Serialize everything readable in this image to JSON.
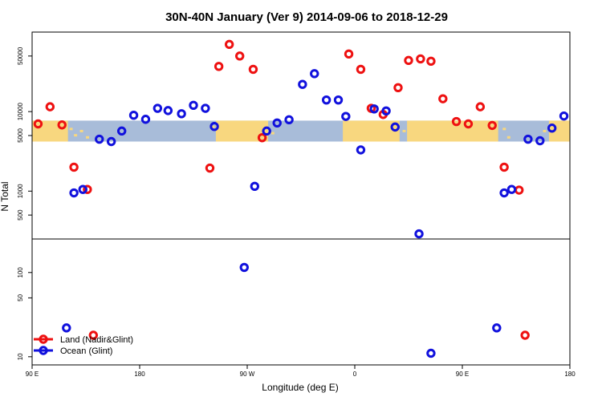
{
  "chart_data": {
    "type": "scatter",
    "title": "30N-40N January (Ver 9)   2014-09-06 to 2018-12-29",
    "xlabel": "Longitude (deg E)",
    "ylabel": "N Total",
    "xlim": [
      0,
      360
    ],
    "x_ticks": [
      {
        "value": 0,
        "label": "90 E"
      },
      {
        "value": 72,
        "label": "180"
      },
      {
        "value": 144,
        "label": "90 W"
      },
      {
        "value": 216,
        "label": "0"
      },
      {
        "value": 288,
        "label": "90 E"
      },
      {
        "value": 360,
        "label": "180"
      }
    ],
    "y_scale": "log",
    "upper_panel": {
      "ylim": [
        250,
        100000
      ],
      "y_ticks": [
        {
          "value": 500,
          "label": "500"
        },
        {
          "value": 1000,
          "label": "1000"
        },
        {
          "value": 5000,
          "label": "5000"
        },
        {
          "value": 10000,
          "label": "10000"
        },
        {
          "value": 50000,
          "label": "50000"
        }
      ]
    },
    "lower_panel": {
      "ylim": [
        8,
        250
      ],
      "y_ticks": [
        {
          "value": 10,
          "label": "10"
        },
        {
          "value": 50,
          "label": "50"
        },
        {
          "value": 100,
          "label": "100"
        }
      ]
    },
    "map_band": {
      "ylim": [
        4200,
        7700
      ],
      "ocean_color": "#a8bcd9",
      "land_color": "#f8d77f"
    },
    "series": [
      {
        "name": "Land (Nadir&Glint)",
        "color": "#ee1111",
        "points": [
          {
            "x": 4,
            "y": 7000
          },
          {
            "x": 12,
            "y": 11500
          },
          {
            "x": 20,
            "y": 6800
          },
          {
            "x": 28,
            "y": 2000
          },
          {
            "x": 37,
            "y": 1050
          },
          {
            "x": 41,
            "y": 18
          },
          {
            "x": 119,
            "y": 1950
          },
          {
            "x": 125,
            "y": 37000
          },
          {
            "x": 132,
            "y": 70000
          },
          {
            "x": 139,
            "y": 50000
          },
          {
            "x": 148,
            "y": 34000
          },
          {
            "x": 154,
            "y": 4700
          },
          {
            "x": 212,
            "y": 53000
          },
          {
            "x": 220,
            "y": 34000
          },
          {
            "x": 227,
            "y": 11000
          },
          {
            "x": 235,
            "y": 9200
          },
          {
            "x": 245,
            "y": 20000
          },
          {
            "x": 252,
            "y": 44000
          },
          {
            "x": 260,
            "y": 46000
          },
          {
            "x": 267,
            "y": 43000
          },
          {
            "x": 275,
            "y": 14500
          },
          {
            "x": 284,
            "y": 7500
          },
          {
            "x": 292,
            "y": 7000
          },
          {
            "x": 300,
            "y": 11500
          },
          {
            "x": 308,
            "y": 6700
          },
          {
            "x": 316,
            "y": 2000
          },
          {
            "x": 326,
            "y": 1030
          },
          {
            "x": 330,
            "y": 18
          }
        ]
      },
      {
        "name": "Ocean (Glint)",
        "color": "#1111dd",
        "points": [
          {
            "x": 23,
            "y": 22
          },
          {
            "x": 28,
            "y": 950
          },
          {
            "x": 34,
            "y": 1050
          },
          {
            "x": 45,
            "y": 4500
          },
          {
            "x": 53,
            "y": 4200
          },
          {
            "x": 60,
            "y": 5700
          },
          {
            "x": 68,
            "y": 9000
          },
          {
            "x": 76,
            "y": 8000
          },
          {
            "x": 84,
            "y": 11000
          },
          {
            "x": 91,
            "y": 10300
          },
          {
            "x": 100,
            "y": 9400
          },
          {
            "x": 108,
            "y": 12000
          },
          {
            "x": 116,
            "y": 11000
          },
          {
            "x": 122,
            "y": 6500
          },
          {
            "x": 142,
            "y": 115
          },
          {
            "x": 149,
            "y": 1150
          },
          {
            "x": 157,
            "y": 5700
          },
          {
            "x": 164,
            "y": 7200
          },
          {
            "x": 172,
            "y": 7900
          },
          {
            "x": 181,
            "y": 22000
          },
          {
            "x": 189,
            "y": 30000
          },
          {
            "x": 197,
            "y": 14000
          },
          {
            "x": 205,
            "y": 14000
          },
          {
            "x": 210,
            "y": 8700
          },
          {
            "x": 220,
            "y": 3300
          },
          {
            "x": 229,
            "y": 10800
          },
          {
            "x": 237,
            "y": 10200
          },
          {
            "x": 243,
            "y": 6400
          },
          {
            "x": 259,
            "y": 290
          },
          {
            "x": 267,
            "y": 11
          },
          {
            "x": 311,
            "y": 22
          },
          {
            "x": 316,
            "y": 950
          },
          {
            "x": 321,
            "y": 1050
          },
          {
            "x": 332,
            "y": 4500
          },
          {
            "x": 340,
            "y": 4300
          },
          {
            "x": 348,
            "y": 6200
          },
          {
            "x": 356,
            "y": 8800
          }
        ]
      }
    ]
  }
}
